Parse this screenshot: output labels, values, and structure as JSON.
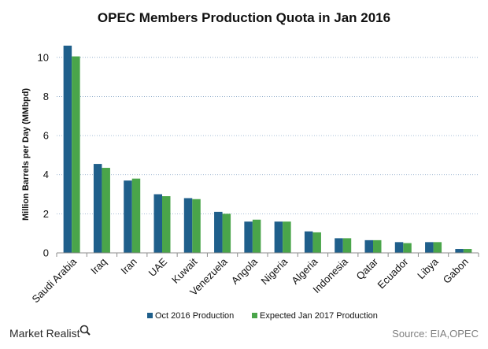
{
  "branding": {
    "logo_text": "Market Realist"
  },
  "source": "Source: EIA,OPEC",
  "chart_data": {
    "type": "bar",
    "title": "OPEC Members Production Quota in Jan 2016",
    "xlabel": "",
    "ylabel": "Million Barrels per Day (MMbpd)",
    "ylim": [
      0,
      11
    ],
    "yticks": [
      0,
      2,
      4,
      6,
      8,
      10
    ],
    "grid": true,
    "legend_position": "bottom",
    "categories": [
      "Saudi Arabia",
      "Iraq",
      "Iran",
      "UAE",
      "Kuwait",
      "Venezuela",
      "Angola",
      "Nigeria",
      "Algeria",
      "Indonesia",
      "Qatar",
      "Ecuador",
      "Libya",
      "Gabon"
    ],
    "series": [
      {
        "name": "Oct 2016 Production",
        "color": "#1f5f8b",
        "values": [
          10.6,
          4.55,
          3.7,
          3.0,
          2.8,
          2.1,
          1.6,
          1.6,
          1.1,
          0.75,
          0.65,
          0.55,
          0.55,
          0.2
        ]
      },
      {
        "name": "Expected Jan 2017 Production",
        "color": "#4aa54a",
        "values": [
          10.05,
          4.35,
          3.8,
          2.9,
          2.75,
          2.0,
          1.7,
          1.6,
          1.05,
          0.75,
          0.65,
          0.5,
          0.55,
          0.2
        ]
      }
    ]
  }
}
